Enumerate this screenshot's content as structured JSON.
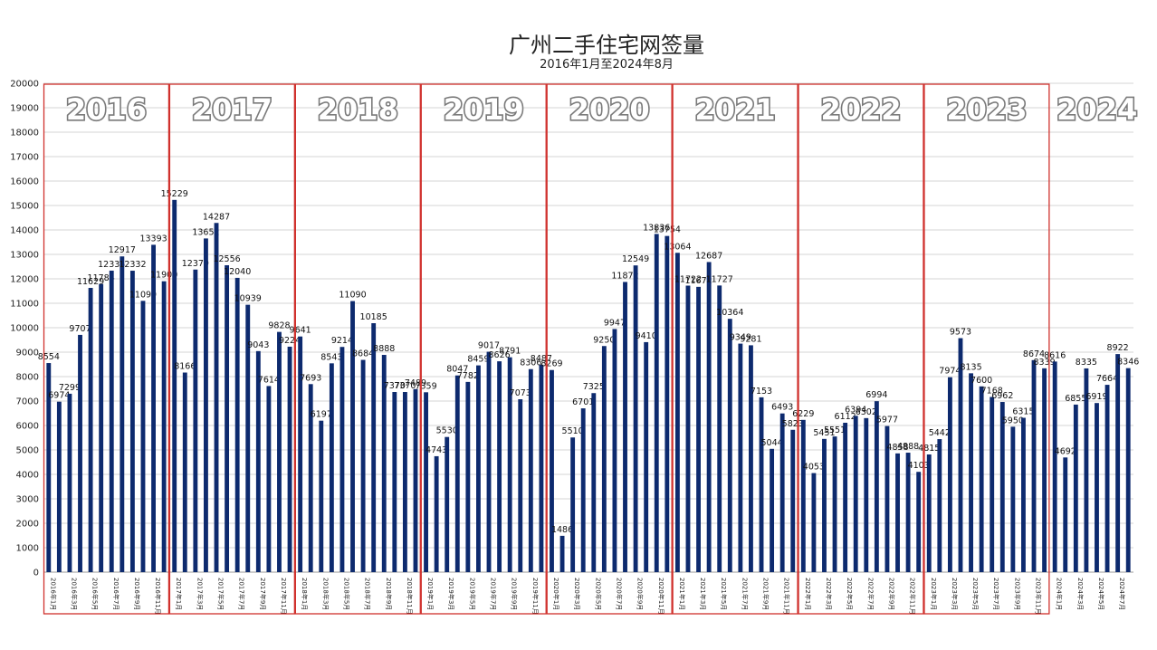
{
  "chart_data": {
    "type": "bar",
    "title": "广州二手住宅网签量",
    "subtitle": "2016年1月至2024年8月",
    "ylim": [
      0,
      20000
    ],
    "yticks": [
      0,
      1000,
      2000,
      3000,
      4000,
      5000,
      6000,
      7000,
      8000,
      9000,
      10000,
      11000,
      12000,
      13000,
      14000,
      15000,
      16000,
      17000,
      18000,
      19000,
      20000
    ],
    "grid": true,
    "bar_color": "#0d2a6e",
    "frame_color": "#d0312d",
    "years": [
      "2016",
      "2017",
      "2018",
      "2019",
      "2020",
      "2021",
      "2022",
      "2023",
      "2024"
    ],
    "year_month_counts": [
      12,
      12,
      12,
      12,
      12,
      12,
      12,
      12,
      8
    ],
    "values": [
      8554,
      6974,
      7299,
      9707,
      11629,
      11784,
      12335,
      12917,
      12332,
      11099,
      13393,
      11900,
      15229,
      8166,
      12379,
      13652,
      14287,
      12556,
      12040,
      10939,
      9043,
      7614,
      9828,
      9224,
      9641,
      7693,
      6197,
      8543,
      9214,
      11090,
      8684,
      10185,
      8888,
      7370,
      7370,
      7489,
      7359,
      4743,
      5530,
      8047,
      7782,
      8459,
      9017,
      8626,
      8791,
      7073,
      8306,
      8487,
      8269,
      1486,
      5510,
      6701,
      7325,
      9250,
      9947,
      11872,
      12549,
      9410,
      13836,
      13754,
      13064,
      11722,
      11672,
      12687,
      11727,
      10364,
      9349,
      9281,
      7153,
      5044,
      6493,
      5823,
      6229,
      4053,
      5451,
      5551,
      6112,
      6394,
      6302,
      6994,
      5977,
      4858,
      4888,
      4103,
      4815,
      5442,
      7974,
      9573,
      8135,
      7600,
      7168,
      6962,
      5950,
      6315,
      8674,
      8339,
      8616,
      4692,
      6855,
      8335,
      6919,
      7664,
      8922,
      8346
    ],
    "x_labels": [
      "2016年1月",
      "2016年3月",
      "2016年5月",
      "2016年7月",
      "2016年9月",
      "2016年11月",
      "2017年1月",
      "2017年3月",
      "2017年5月",
      "2017年7月",
      "2017年9月",
      "2017年11月",
      "2018年1月",
      "2018年3月",
      "2018年5月",
      "2018年7月",
      "2018年9月",
      "2018年11月",
      "2019年1月",
      "2019年3月",
      "2019年5月",
      "2019年7月",
      "2019年9月",
      "2019年11月",
      "2020年1月",
      "2020年3月",
      "2020年5月",
      "2020年7月",
      "2020年9月",
      "2020年11月",
      "2021年1月",
      "2021年3月",
      "2021年5月",
      "2021年7月",
      "2021年9月",
      "2021年11月",
      "2022年1月",
      "2022年3月",
      "2022年5月",
      "2022年7月",
      "2022年9月",
      "2022年11月",
      "2023年1月",
      "2023年3月",
      "2023年5月",
      "2023年7月",
      "2023年9月",
      "2023年11月",
      "2024年1月",
      "2024年3月",
      "2024年5月",
      "2024年7月"
    ]
  }
}
